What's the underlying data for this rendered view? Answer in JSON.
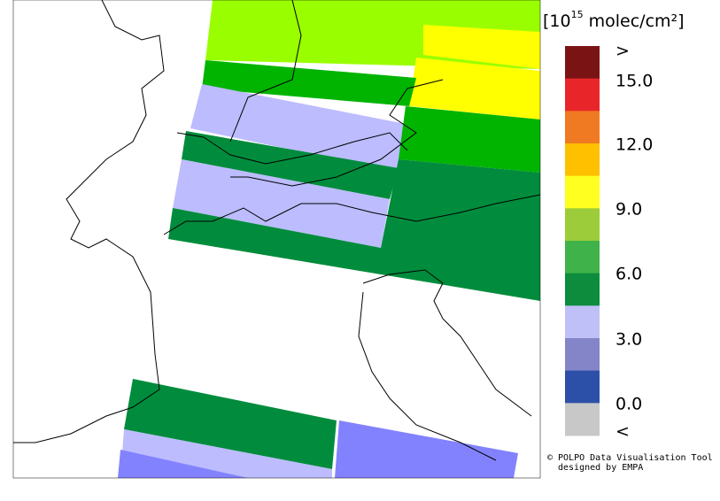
{
  "colorbar": {
    "title": [
      "[10",
      "15",
      " molec/cm²]"
    ],
    "colors": [
      "#7a1414",
      "#e8262a",
      "#f07a22",
      "#ffc000",
      "#ffff20",
      "#9ccc3a",
      "#3fb24a",
      "#0c8c3c",
      "#c0c0f8",
      "#8484c8",
      "#2c50a8",
      "#c8c8c8"
    ],
    "labels": [
      ">",
      "15.0",
      "12.0",
      "9.0",
      "6.0",
      "3.0",
      "0.0",
      "<"
    ]
  },
  "credits": [
    "© POLPO Data Visualisation Tool",
    "designed by EMPA"
  ]
}
